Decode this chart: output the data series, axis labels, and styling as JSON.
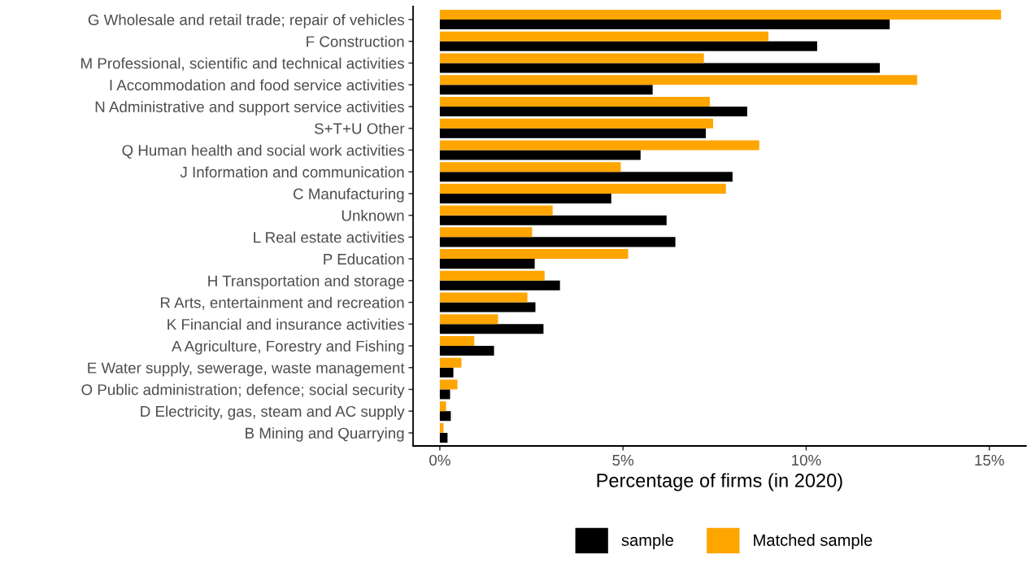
{
  "chart_data": {
    "type": "bar",
    "orientation": "horizontal",
    "categories": [
      "G Wholesale and retail trade; repair of vehicles",
      "F Construction",
      "M Professional, scientific and technical activities",
      "I Accommodation and food service activities",
      "N Administrative and support service activities",
      "S+T+U Other",
      "Q Human health and social work activities",
      "J Information and communication",
      "C Manufacturing",
      "Unknown",
      "L Real estate activities",
      "P Education",
      "H Transportation and storage",
      "R Arts, entertainment and recreation",
      "K Financial and insurance activities",
      "A Agriculture, Forestry and Fishing",
      "E Water supply, sewerage, waste management",
      "O Public administration; defence; social security",
      "D Electricity, gas, steam and AC supply",
      "B Mining and Quarrying"
    ],
    "series": [
      {
        "name": "sample",
        "color": "#000000",
        "values": [
          12.28,
          10.3,
          12.01,
          5.81,
          8.39,
          7.26,
          5.48,
          7.99,
          4.68,
          6.19,
          6.43,
          2.59,
          3.28,
          2.61,
          2.83,
          1.48,
          0.37,
          0.28,
          0.3,
          0.21
        ]
      },
      {
        "name": "Matched sample",
        "color": "#ffa500",
        "values": [
          15.32,
          8.97,
          7.21,
          13.03,
          7.37,
          7.46,
          8.72,
          4.94,
          7.81,
          3.08,
          2.52,
          5.14,
          2.86,
          2.39,
          1.59,
          0.94,
          0.59,
          0.48,
          0.17,
          0.1
        ]
      }
    ],
    "xlabel": "Percentage of firms (in 2020)",
    "xlim": [
      -0.73,
      16.0
    ],
    "xticks": [
      {
        "value": 0,
        "label": "0%"
      },
      {
        "value": 5,
        "label": "5%"
      },
      {
        "value": 10,
        "label": "10%"
      },
      {
        "value": 15,
        "label": "15%"
      }
    ],
    "grid": false,
    "legend": "bottom"
  }
}
